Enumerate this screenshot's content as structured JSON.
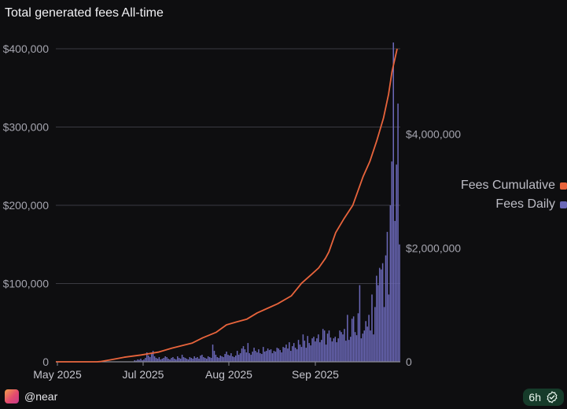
{
  "title": "Total generated fees All-time",
  "footer": {
    "handle": "@near",
    "badge": "6h"
  },
  "colors": {
    "cumulative": "#e8643c",
    "daily": "#6b68b8",
    "grid": "#3a3a42",
    "axis": "#8a8a94"
  },
  "chart_data": {
    "type": "bar+line",
    "title": "Total generated fees All-time",
    "x_range": [
      "2025-04-27",
      "2025-10-05"
    ],
    "x_tick_labels": [
      "May 2025",
      "Jul 2025",
      "Aug 2025",
      "Sep 2025"
    ],
    "left_axis": {
      "ylim": [
        0,
        400000
      ],
      "ticks": [
        "0",
        "$100,000",
        "$200,000",
        "$300,000",
        "$400,000"
      ]
    },
    "right_axis": {
      "ylim": [
        0,
        5500000
      ],
      "ticks": [
        "0",
        "$2,000,000",
        "$4,000,000"
      ]
    },
    "legend": [
      "Fees Cumulative",
      "Fees Daily"
    ],
    "series": [
      {
        "name": "Fees Daily",
        "axis": "left",
        "type": "bar",
        "values": [
          0,
          0,
          0,
          0,
          0,
          0,
          0,
          0,
          0,
          0,
          0,
          0,
          0,
          0,
          0,
          0,
          0,
          0,
          0,
          0,
          0,
          0,
          0,
          0,
          0,
          0,
          0,
          0,
          0,
          0,
          0,
          0,
          0,
          0,
          0,
          0,
          0,
          0,
          0,
          0,
          0,
          0,
          0,
          0,
          0,
          0,
          0,
          0,
          0,
          0,
          0,
          2000,
          1500,
          3000,
          2500,
          4000,
          2000,
          3000,
          5000,
          12000,
          8000,
          6000,
          10000,
          14000,
          7000,
          5000,
          4000,
          6000,
          3000,
          4000,
          5000,
          7000,
          6000,
          4000,
          3000,
          5000,
          6000,
          4000,
          3000,
          7000,
          5000,
          4000,
          9000,
          6000,
          5000,
          4000,
          3000,
          6000,
          5000,
          4000,
          7000,
          5000,
          6000,
          4000,
          8000,
          9000,
          6000,
          5000,
          4000,
          7000,
          6000,
          5000,
          22000,
          14000,
          9000,
          6000,
          5000,
          8000,
          7000,
          6000,
          10000,
          13000,
          9000,
          8000,
          11000,
          7000,
          6000,
          8000,
          14000,
          9000,
          11000,
          17000,
          20000,
          16000,
          12000,
          24000,
          11000,
          9000,
          13000,
          18000,
          14000,
          12000,
          16000,
          11000,
          10000,
          19000,
          13000,
          14000,
          17000,
          15000,
          16000,
          11000,
          14000,
          13000,
          18000,
          17000,
          15000,
          12000,
          19000,
          18000,
          22000,
          17000,
          25000,
          14000,
          20000,
          24000,
          18000,
          16000,
          28000,
          22000,
          19000,
          35000,
          27000,
          18000,
          33000,
          24000,
          21000,
          30000,
          32000,
          26000,
          30000,
          35000,
          25000,
          28000,
          42000,
          40000,
          22000,
          36000,
          40000,
          31000,
          26000,
          30000,
          32000,
          25000,
          30000,
          40000,
          38000,
          35000,
          42000,
          27000,
          60000,
          28000,
          32000,
          55000,
          58000,
          38000,
          34000,
          62000,
          98000,
          30000,
          36000,
          40000,
          52000,
          45000,
          60000,
          40000,
          86000,
          35000,
          70000,
          110000,
          98000,
          120000,
          118000,
          126000,
          70000,
          136000,
          166000,
          86000,
          200000,
          256000,
          408000,
          180000,
          252000,
          330000,
          150000
        ]
      },
      {
        "name": "Fees Cumulative",
        "axis": "right",
        "type": "line",
        "points": [
          [
            0,
            0
          ],
          [
            0.12,
            0
          ],
          [
            0.13,
            4000
          ],
          [
            0.16,
            35000
          ],
          [
            0.2,
            80000
          ],
          [
            0.25,
            120000
          ],
          [
            0.3,
            170000
          ],
          [
            0.34,
            240000
          ],
          [
            0.4,
            330000
          ],
          [
            0.43,
            420000
          ],
          [
            0.47,
            520000
          ],
          [
            0.5,
            650000
          ],
          [
            0.53,
            700000
          ],
          [
            0.56,
            750000
          ],
          [
            0.59,
            860000
          ],
          [
            0.62,
            940000
          ],
          [
            0.65,
            1020000
          ],
          [
            0.69,
            1160000
          ],
          [
            0.72,
            1380000
          ],
          [
            0.75,
            1540000
          ],
          [
            0.77,
            1650000
          ],
          [
            0.79,
            1820000
          ],
          [
            0.8,
            1930000
          ],
          [
            0.82,
            2270000
          ],
          [
            0.845,
            2520000
          ],
          [
            0.87,
            2750000
          ],
          [
            0.885,
            3000000
          ],
          [
            0.9,
            3250000
          ],
          [
            0.92,
            3520000
          ],
          [
            0.94,
            3880000
          ],
          [
            0.96,
            4280000
          ],
          [
            0.975,
            4700000
          ],
          [
            0.985,
            5100000
          ],
          [
            1,
            5500000
          ]
        ]
      }
    ]
  }
}
